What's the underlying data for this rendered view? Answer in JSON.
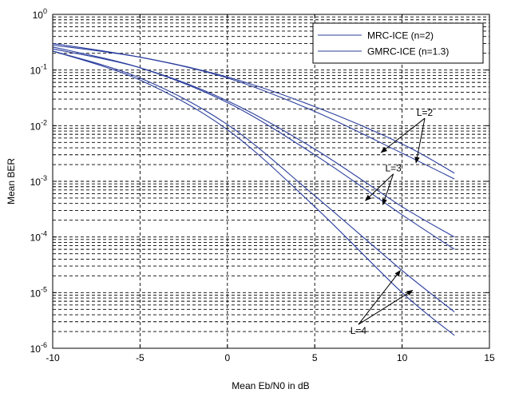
{
  "chart_data": {
    "type": "line",
    "xlabel": "Mean Eb/N0 in dB",
    "ylabel": "Mean BER",
    "xlim": [
      -10,
      15
    ],
    "ylim": [
      1e-06,
      1
    ],
    "yscale": "log",
    "grid": true,
    "legend_position": "top-right",
    "x_ticks": [
      "-10",
      "-5",
      "0",
      "5",
      "10",
      "15"
    ],
    "y_ticks": [
      {
        "base": "10",
        "exp": "-6",
        "value": 1e-06
      },
      {
        "base": "10",
        "exp": "-5",
        "value": 1e-05
      },
      {
        "base": "10",
        "exp": "-4",
        "value": 0.0001
      },
      {
        "base": "10",
        "exp": "-3",
        "value": 0.001
      },
      {
        "base": "10",
        "exp": "-2",
        "value": 0.01
      },
      {
        "base": "10",
        "exp": "-1",
        "value": 0.1
      },
      {
        "base": "10",
        "exp": "0",
        "value": 1
      }
    ],
    "legend": [
      {
        "label": "MRC-ICE (n=2)",
        "color": "#2b3f9e"
      },
      {
        "label": "GMRC-ICE (n=1.3)",
        "color": "#2b3f9e"
      }
    ],
    "series": [
      {
        "group": "L=2",
        "legend_index": 0,
        "color": "#2b3f9e",
        "x": [
          -10,
          -5,
          0,
          5,
          10,
          13
        ],
        "y": [
          0.28,
          0.17,
          0.075,
          0.022,
          0.0047,
          0.0014
        ]
      },
      {
        "group": "L=2",
        "legend_index": 1,
        "color": "#2b3f9e",
        "x": [
          -10,
          -5,
          0,
          5,
          10,
          13
        ],
        "y": [
          0.3,
          0.17,
          0.072,
          0.018,
          0.0032,
          0.0011
        ]
      },
      {
        "group": "L=3",
        "legend_index": 0,
        "color": "#2b3f9e",
        "x": [
          -10,
          -5,
          0,
          5,
          10,
          13
        ],
        "y": [
          0.24,
          0.11,
          0.028,
          0.0038,
          0.00035,
          0.0001
        ]
      },
      {
        "group": "L=3",
        "legend_index": 1,
        "color": "#2b3f9e",
        "x": [
          -10,
          -5,
          0,
          5,
          10,
          13
        ],
        "y": [
          0.26,
          0.11,
          0.026,
          0.003,
          0.00025,
          6e-05
        ]
      },
      {
        "group": "L=4",
        "legend_index": 0,
        "color": "#2b3f9e",
        "x": [
          -10,
          -5,
          0,
          5,
          10,
          13
        ],
        "y": [
          0.22,
          0.072,
          0.0105,
          0.00055,
          2.5e-05,
          4.5e-06
        ]
      },
      {
        "group": "L=4",
        "legend_index": 1,
        "color": "#2b3f9e",
        "x": [
          -10,
          -5,
          0,
          5,
          10,
          13
        ],
        "y": [
          0.22,
          0.066,
          0.0085,
          0.00035,
          1e-05,
          1.7e-06
        ]
      }
    ],
    "annotations": [
      {
        "text": "L=2",
        "label_at": [
          11.3,
          0.015
        ],
        "targets": [
          [
            8.8,
            0.0033
          ],
          [
            10.8,
            0.00215
          ]
        ]
      },
      {
        "text": "L=3",
        "label_at": [
          9.5,
          0.0015
        ],
        "targets": [
          [
            7.9,
            0.00045
          ],
          [
            8.9,
            0.00038
          ]
        ]
      },
      {
        "text": "L=4",
        "label_at": [
          7.5,
          1.8e-06
        ],
        "targets": [
          [
            9.9,
            2.5e-05
          ],
          [
            10.6,
            1.1e-05
          ]
        ]
      }
    ]
  }
}
